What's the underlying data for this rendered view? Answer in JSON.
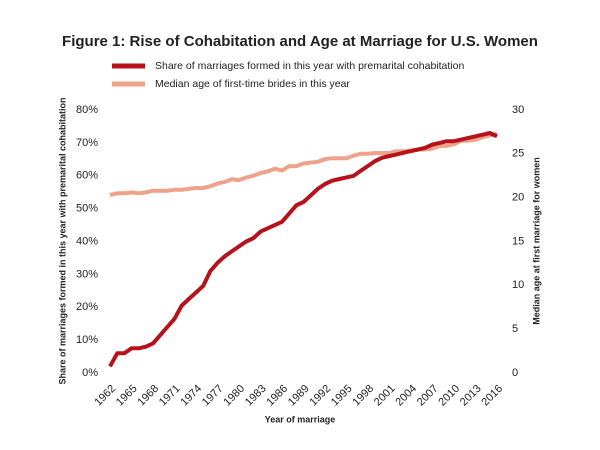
{
  "chart_data": {
    "type": "line",
    "title": "Figure 1: Rise of Cohabitation and Age at Marriage for U.S. Women",
    "x_label": "Year of marriage",
    "y_label": "Share of marriages formed in this year with premarital cohabitation",
    "y2_label": "Median age at first marriage for women",
    "x": [
      1962,
      1963,
      1964,
      1965,
      1966,
      1967,
      1968,
      1969,
      1970,
      1971,
      1972,
      1973,
      1974,
      1975,
      1976,
      1977,
      1978,
      1979,
      1980,
      1981,
      1982,
      1983,
      1984,
      1985,
      1986,
      1987,
      1988,
      1989,
      1990,
      1991,
      1992,
      1993,
      1994,
      1995,
      1996,
      1997,
      1998,
      1999,
      2000,
      2001,
      2002,
      2003,
      2004,
      2005,
      2006,
      2007,
      2008,
      2009,
      2010,
      2011,
      2012,
      2013,
      2014,
      2015,
      2016
    ],
    "xlim": [
      1962,
      2016
    ],
    "xticks": [
      1962,
      1965,
      1968,
      1971,
      1974,
      1977,
      1980,
      1983,
      1986,
      1989,
      1992,
      1995,
      1998,
      2001,
      2004,
      2007,
      2010,
      2013,
      2016
    ],
    "ylim": [
      0,
      80
    ],
    "yticks": [
      {
        "value": 0,
        "label": "0%"
      },
      {
        "value": 10,
        "label": "10%"
      },
      {
        "value": 20,
        "label": "20%"
      },
      {
        "value": 30,
        "label": "30%"
      },
      {
        "value": 40,
        "label": "40%"
      },
      {
        "value": 50,
        "label": "50%"
      },
      {
        "value": 60,
        "label": "60%"
      },
      {
        "value": 70,
        "label": "70%"
      },
      {
        "value": 80,
        "label": "80%"
      }
    ],
    "y2lim": [
      0,
      30
    ],
    "y2ticks": [
      0,
      5,
      10,
      15,
      20,
      25,
      30
    ],
    "series": [
      {
        "name": "Share of marriages formed in this year with premarital cohabitation",
        "color": "#b5121b",
        "values": [
          2,
          6,
          6,
          7.5,
          7.5,
          8,
          9,
          11.5,
          14,
          16.5,
          20.5,
          22.5,
          24.5,
          26.5,
          31,
          33.5,
          35.5,
          37,
          38.5,
          40,
          41,
          43,
          44,
          45,
          46,
          48.5,
          51,
          52,
          54,
          56,
          57.5,
          58.5,
          59,
          59.5,
          60,
          61.5,
          63,
          64.5,
          65.5,
          66,
          66.5,
          67,
          67.5,
          68,
          68.5,
          69.5,
          70,
          70.5,
          70.5,
          71,
          71.5,
          72,
          72.5,
          73,
          72
        ]
      },
      {
        "name": "Median age of first-time brides in this year",
        "color": "#eea28a",
        "axis": "y2",
        "values": [
          20.3,
          20.5,
          20.5,
          20.6,
          20.5,
          20.6,
          20.8,
          20.8,
          20.8,
          20.9,
          20.9,
          21.0,
          21.1,
          21.1,
          21.3,
          21.6,
          21.8,
          22.1,
          22.0,
          22.3,
          22.5,
          22.8,
          23.0,
          23.3,
          23.1,
          23.6,
          23.6,
          23.9,
          24.0,
          24.1,
          24.4,
          24.5,
          24.5,
          24.5,
          24.8,
          25.0,
          25.0,
          25.1,
          25.1,
          25.1,
          25.3,
          25.3,
          25.4,
          25.5,
          25.5,
          25.6,
          25.9,
          25.9,
          26.1,
          26.5,
          26.5,
          26.6,
          26.9,
          27.1,
          27.3
        ]
      }
    ]
  }
}
